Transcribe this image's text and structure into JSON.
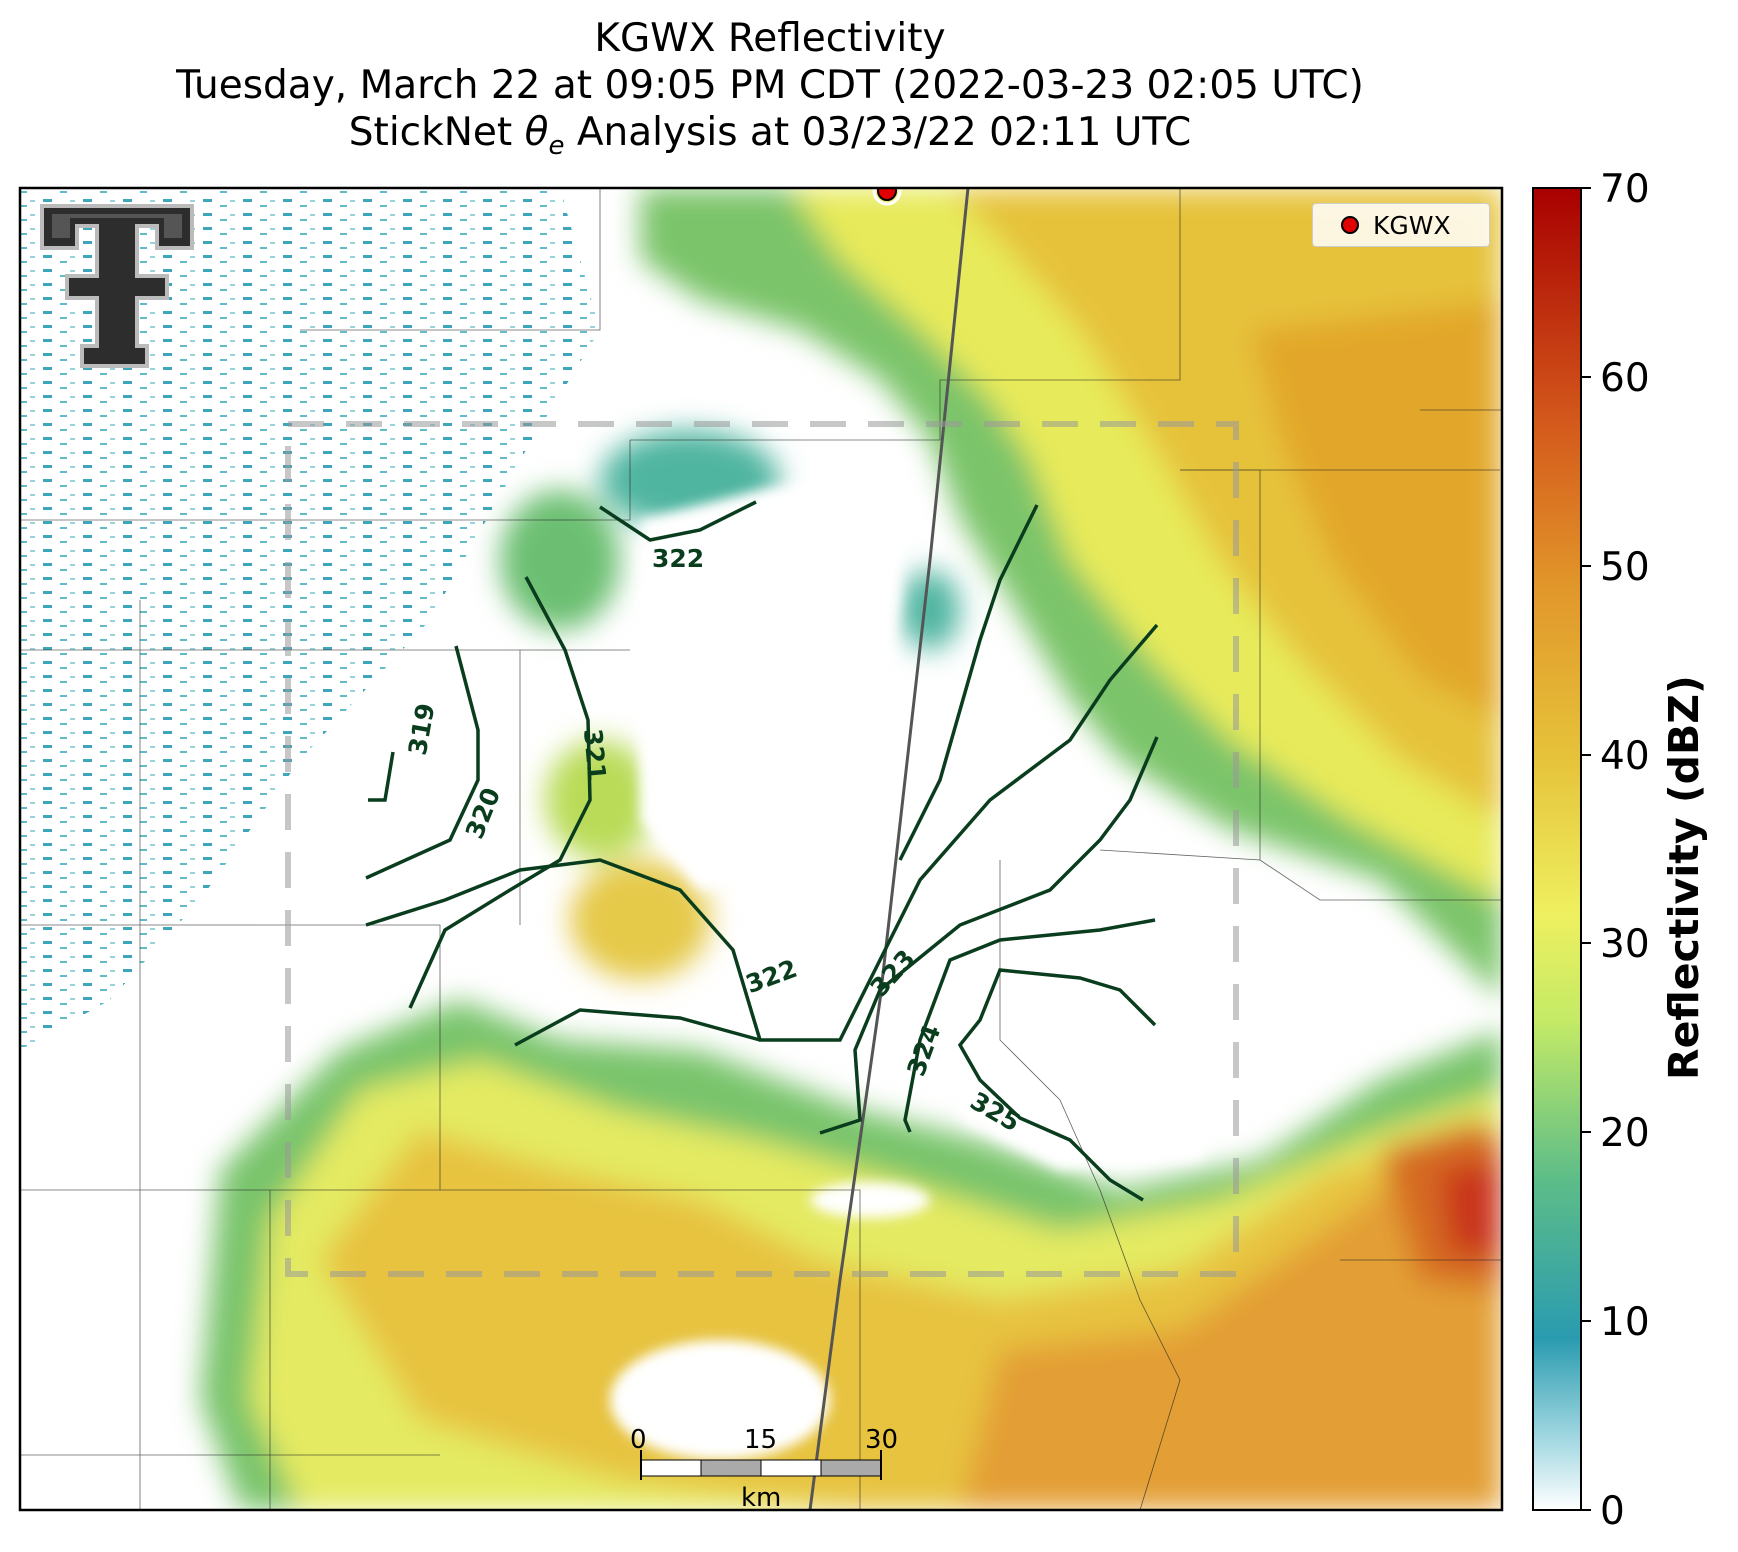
{
  "title": {
    "line1": "KGWX Reflectivity",
    "line2": "Tuesday, March 22 at 09:05 PM CDT (2022-03-23 02:05 UTC)",
    "line3_prefix": "StickNet ",
    "line3_symbol": "θ",
    "line3_sub": "e",
    "line3_suffix": " Analysis at 03/23/22 02:11 UTC"
  },
  "legend": {
    "label": "KGWX",
    "marker_color": "#e00000"
  },
  "colorbar": {
    "label": "Reflectivity (dBZ)",
    "ticks": [
      "0",
      "10",
      "20",
      "30",
      "40",
      "50",
      "60",
      "70"
    ],
    "range": [
      0,
      70
    ]
  },
  "contours": {
    "color": "#0a3d1e",
    "labels": [
      "319",
      "320",
      "321",
      "322",
      "322",
      "323",
      "324",
      "325"
    ]
  },
  "scalebar": {
    "ticks": [
      "0",
      "15",
      "30"
    ],
    "unit": "km"
  },
  "radar_site": "KGWX",
  "colors": {
    "dbz_low": "#2a9bb0",
    "dbz_mid": "#e8f060",
    "dbz_high": "#c81e0a"
  }
}
